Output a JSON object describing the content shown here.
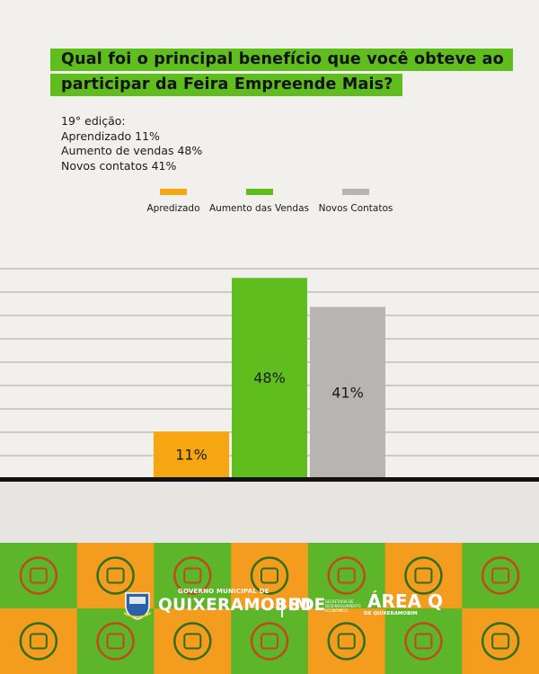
{
  "question": {
    "line1": "Qual foi o principal benefício que você obteve ao",
    "line2": "participar da Feira Empreende Mais?"
  },
  "notes": {
    "edition": "19° edição:",
    "item1": "Aprendizado 11%",
    "item2": "Aumento de vendas 48%",
    "item3": "Novos contatos 41%"
  },
  "chart_data": {
    "type": "bar",
    "categories": [
      "Apredizado",
      "Aumento das Vendas",
      "Novos Contatos"
    ],
    "values": [
      11,
      48,
      41
    ],
    "data_labels": [
      "11%",
      "48%",
      "41%"
    ],
    "colors": [
      "#f6a611",
      "#5fbe1e",
      "#b7b4b2"
    ],
    "legend_position": "top-center",
    "grid": true,
    "title": "",
    "xlabel": "",
    "ylabel": ""
  },
  "footer": {
    "gov_label": "GOVERNO MUNICIPAL DE",
    "city": "QUIXERAMOBIM",
    "sde": "SDE",
    "sde_sub": "SECRETARIA DE DESENVOLVIMENTO ECONÔMICO",
    "area_title": "ÁREA Q",
    "area_sub": "DE QUIXERAMOBIM",
    "colors": {
      "green": "#5db52a",
      "orange": "#f49c1d",
      "icon": "#2f6e1c",
      "icon_alt": "#c14a1d"
    }
  }
}
